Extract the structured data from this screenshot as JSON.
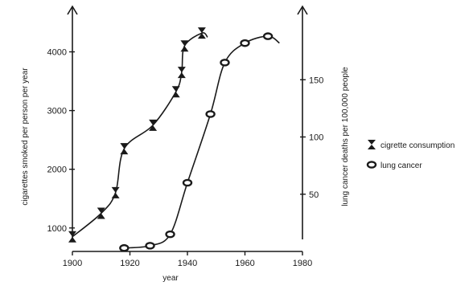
{
  "chart_data": {
    "type": "line",
    "xlabel": "year",
    "ylabel_left": "cigarettes smoked per person per year",
    "ylabel_right": "lung cancer deaths per 100,000 people",
    "xlim": [
      1900,
      1980
    ],
    "ylim_left": [
      600,
      4500
    ],
    "ylim_right": [
      0,
      200
    ],
    "x_ticks": [
      "1900",
      "1920",
      "1940",
      "1960",
      "1980"
    ],
    "y_left_ticks": [
      "1000",
      "2000",
      "3000",
      "4000"
    ],
    "y_right_ticks": [
      "50",
      "100",
      "150"
    ],
    "legend_position": "right",
    "series": [
      {
        "name": "cigrette consumption",
        "axis": "left",
        "marker": "hourglass",
        "color": "#1a1a1a",
        "points": [
          {
            "x": 1900,
            "y": 850
          },
          {
            "x": 1910,
            "y": 1250
          },
          {
            "x": 1915,
            "y": 1600
          },
          {
            "x": 1918,
            "y": 2350
          },
          {
            "x": 1928,
            "y": 2750
          },
          {
            "x": 1936,
            "y": 3320
          },
          {
            "x": 1938,
            "y": 3650
          },
          {
            "x": 1939,
            "y": 4100
          },
          {
            "x": 1945,
            "y": 4320
          },
          {
            "x": 1947,
            "y": 4250
          }
        ]
      },
      {
        "name": "lung cancer",
        "axis": "right",
        "marker": "circle",
        "color": "#1a1a1a",
        "points": [
          {
            "x": 1918,
            "y": 3
          },
          {
            "x": 1927,
            "y": 5
          },
          {
            "x": 1934,
            "y": 15
          },
          {
            "x": 1940,
            "y": 60
          },
          {
            "x": 1948,
            "y": 120
          },
          {
            "x": 1953,
            "y": 165
          },
          {
            "x": 1960,
            "y": 182
          },
          {
            "x": 1968,
            "y": 188
          },
          {
            "x": 1972,
            "y": 182
          }
        ]
      }
    ]
  }
}
